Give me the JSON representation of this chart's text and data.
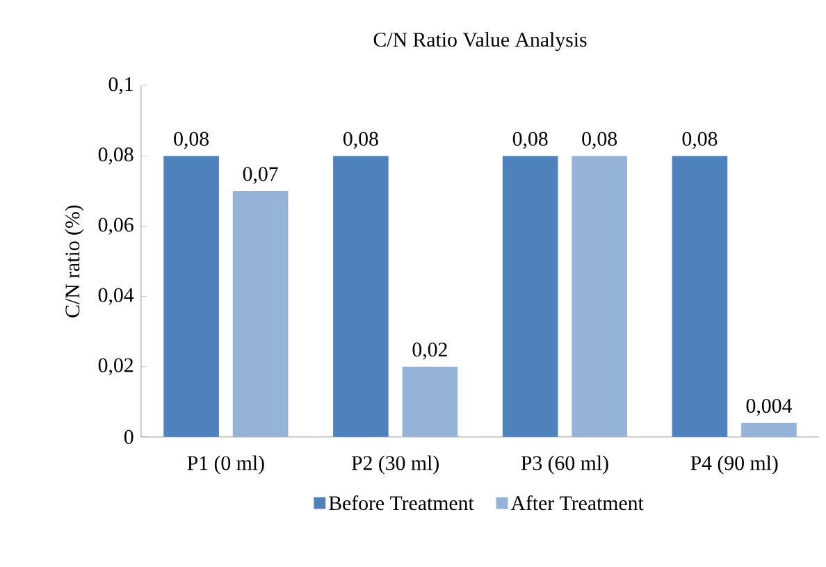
{
  "chart_data": {
    "type": "bar",
    "title": "C/N Ratio Value Analysis",
    "ylabel": "C/N ratio (%)",
    "categories": [
      "P1 (0 ml)",
      "P2 (30 ml)",
      "P3 (60 ml)",
      "P4 (90 ml)"
    ],
    "series": [
      {
        "name": "Before Treatment",
        "color": "#4f81bd",
        "values": [
          0.08,
          0.08,
          0.08,
          0.08
        ],
        "value_labels": [
          "0,08",
          "0,08",
          "0,08",
          "0,08"
        ]
      },
      {
        "name": "After Treatment",
        "color": "#95b3d7",
        "values": [
          0.07,
          0.02,
          0.08,
          0.004
        ],
        "value_labels": [
          "0,07",
          "0,02",
          "0,08",
          "0,004"
        ]
      }
    ],
    "ylim": [
      0,
      0.1
    ],
    "yticks": [
      0,
      {
        "value": 0.02,
        "label": "0,02"
      },
      {
        "value": 0.04,
        "label": "0,04"
      },
      {
        "value": 0.06,
        "label": "0,06"
      },
      {
        "value": 0.08,
        "label": "0,08"
      },
      {
        "value": 0.1,
        "label": "0,1"
      }
    ],
    "legend": "bottom"
  }
}
